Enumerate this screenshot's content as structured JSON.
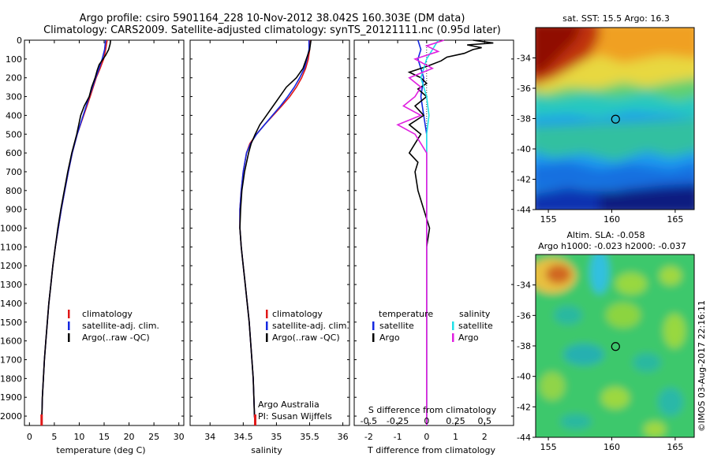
{
  "title": {
    "line1": "Argo profile: csiro 5901164_228 10-Nov-2012 38.042S 160.303E (DM data)",
    "line2": "Climatology: CARS2009. Satellite-adjusted climatology: synTS_20121111.nc (0.95d later)"
  },
  "colors": {
    "climatology": "#e01818",
    "satellite": "#1428e0",
    "argo": "#000000",
    "satellite_salinity": "#20e0e8",
    "argo_salinity": "#e020e0",
    "marker": "#e01818"
  },
  "y_axis": {
    "ticks": [
      "0",
      "100",
      "200",
      "300",
      "400",
      "500",
      "600",
      "700",
      "800",
      "900",
      "1000",
      "1100",
      "1200",
      "1300",
      "1400",
      "1500",
      "1600",
      "1700",
      "1800",
      "1900",
      "2000"
    ],
    "ylim": [
      0,
      2050
    ],
    "inverted": true
  },
  "chart_data": [
    {
      "type": "line",
      "name": "temperature",
      "xlabel": "temperature (deg C)",
      "xlim": [
        -1,
        31
      ],
      "xticks": [
        "0",
        "5",
        "10",
        "15",
        "20",
        "25",
        "30"
      ],
      "legend": [
        "climatology",
        "satellite-adj. clim.",
        "Argo(..raw -QC)"
      ],
      "legend_position": "lower-right",
      "series": [
        {
          "name": "climatology",
          "key": "climatology",
          "depth": [
            0,
            50,
            100,
            150,
            200,
            300,
            400,
            500,
            600,
            700,
            800,
            900,
            1000,
            1100,
            1200,
            1300,
            1400,
            1500,
            1600,
            1700,
            1800,
            1900,
            2000,
            2050
          ],
          "values": [
            15.6,
            15.3,
            14.9,
            14.2,
            13.4,
            12.2,
            10.9,
            9.6,
            8.6,
            7.8,
            7.1,
            6.4,
            5.8,
            5.2,
            4.7,
            4.3,
            3.9,
            3.6,
            3.3,
            3.0,
            2.8,
            2.6,
            2.5,
            2.45
          ]
        },
        {
          "name": "satellite-adj. clim.",
          "key": "satellite",
          "depth": [
            0,
            50,
            100,
            150,
            200,
            300,
            400,
            500,
            600,
            700,
            800,
            900,
            1000,
            1100,
            1200,
            1300,
            1400,
            1500,
            1600,
            1700,
            1800,
            1900,
            2000,
            2050
          ],
          "values": [
            15.3,
            15.1,
            14.6,
            14.0,
            13.3,
            12.0,
            10.8,
            9.6,
            8.6,
            7.8,
            7.1,
            6.4,
            5.8,
            5.2,
            4.7,
            4.3,
            3.9,
            3.6,
            3.3,
            3.0,
            2.8,
            2.6,
            2.5,
            2.45
          ]
        },
        {
          "name": "Argo(..raw -QC)",
          "key": "argo",
          "depth": [
            0,
            20,
            50,
            80,
            100,
            130,
            160,
            200,
            250,
            300,
            350,
            400,
            500,
            600,
            700,
            800,
            900,
            1000,
            1100,
            1200,
            1300,
            1400,
            1500,
            1600,
            1700,
            1800,
            1900,
            2000,
            2050
          ],
          "values": [
            16.3,
            16.2,
            15.9,
            15.3,
            14.8,
            14.0,
            13.6,
            13.2,
            12.5,
            12.0,
            11.0,
            10.3,
            9.5,
            8.5,
            7.7,
            7.0,
            6.3,
            5.7,
            5.2,
            4.7,
            4.3,
            3.9,
            3.6,
            3.3,
            3.0,
            2.8,
            2.6,
            2.5,
            2.45
          ]
        }
      ]
    },
    {
      "type": "line",
      "name": "salinity",
      "xlabel": "salinity",
      "xlim": [
        33.7,
        36.1
      ],
      "xticks": [
        "34",
        "34.5",
        "35",
        "35.5",
        "36"
      ],
      "legend": [
        "climatology",
        "satellite-adj. clim.",
        "Argo(..raw -QC)"
      ],
      "legend_position": "lower-right",
      "annotation": [
        "Argo Australia",
        "PI: Susan Wijffels"
      ],
      "series": [
        {
          "name": "climatology",
          "key": "climatology",
          "depth": [
            0,
            50,
            100,
            150,
            200,
            250,
            300,
            350,
            400,
            450,
            500,
            550,
            600,
            700,
            800,
            900,
            1000,
            1100,
            1200,
            1300,
            1400,
            1500,
            1600,
            1700,
            1800,
            1900,
            2000,
            2050
          ],
          "values": [
            35.5,
            35.5,
            35.48,
            35.44,
            35.38,
            35.3,
            35.2,
            35.08,
            34.95,
            34.82,
            34.7,
            34.6,
            34.55,
            34.5,
            34.47,
            34.45,
            34.45,
            34.47,
            34.5,
            34.53,
            34.56,
            34.59,
            34.61,
            34.63,
            34.65,
            34.66,
            34.67,
            34.68
          ]
        },
        {
          "name": "satellite-adj. clim.",
          "key": "satellite",
          "depth": [
            0,
            50,
            100,
            150,
            200,
            250,
            300,
            350,
            400,
            450,
            500,
            550,
            600,
            700,
            800,
            900,
            1000,
            1100,
            1200,
            1300,
            1400,
            1500,
            1600,
            1700,
            1800,
            1900,
            2000,
            2050
          ],
          "values": [
            35.49,
            35.49,
            35.46,
            35.42,
            35.35,
            35.27,
            35.17,
            35.06,
            34.94,
            34.82,
            34.7,
            34.61,
            34.55,
            34.5,
            34.47,
            34.45,
            34.45,
            34.47,
            34.5,
            34.53,
            34.56,
            34.59,
            34.61,
            34.63,
            34.65,
            34.66,
            34.67,
            34.68
          ]
        },
        {
          "name": "Argo(..raw -QC)",
          "key": "argo",
          "depth": [
            0,
            50,
            100,
            150,
            200,
            250,
            300,
            350,
            400,
            450,
            500,
            550,
            600,
            700,
            800,
            900,
            1000,
            1100,
            1200,
            1300,
            1400,
            1500,
            1600,
            1700,
            1800,
            1900,
            2000,
            2050
          ],
          "values": [
            35.52,
            35.5,
            35.45,
            35.4,
            35.3,
            35.15,
            35.05,
            34.95,
            34.85,
            34.75,
            34.68,
            34.62,
            34.58,
            34.52,
            34.48,
            34.46,
            34.45,
            34.47,
            34.5,
            34.53,
            34.56,
            34.59,
            34.61,
            34.63,
            34.65,
            34.66,
            34.67,
            34.68
          ]
        }
      ]
    },
    {
      "type": "line",
      "name": "differences",
      "xlabel": "T difference from climatology",
      "xlabel2": "S difference from climatology",
      "xlim": [
        -2.5,
        3
      ],
      "xticks": [
        "-2",
        "-1",
        "0",
        "1",
        "2"
      ],
      "xticks2": [
        "-0.5",
        "-0.25",
        "0",
        "0.25",
        "0.5"
      ],
      "legend_temperature": {
        "heading": "temperature",
        "entries": [
          "satellite",
          "Argo"
        ]
      },
      "legend_salinity": {
        "heading": "salinity",
        "entries": [
          "satellite",
          "Argo"
        ]
      },
      "series": [
        {
          "name": "satellite T",
          "key": "satellite",
          "depth": [
            0,
            50,
            100,
            200,
            300,
            400,
            500,
            600,
            800,
            1000,
            1500,
            2000,
            2050
          ],
          "values": [
            -0.3,
            -0.2,
            -0.3,
            -0.1,
            -0.2,
            -0.1,
            0.0,
            0.0,
            0.0,
            0.0,
            0.0,
            0.0,
            0.0
          ]
        },
        {
          "name": "Argo T",
          "key": "argo",
          "depth": [
            0,
            15,
            25,
            40,
            50,
            70,
            90,
            110,
            140,
            170,
            200,
            230,
            260,
            300,
            350,
            400,
            450,
            500,
            550,
            600,
            650,
            700,
            800,
            900,
            1000,
            1100,
            1200,
            1500,
            1800,
            2000,
            2050
          ],
          "values": [
            1.6,
            2.3,
            1.4,
            1.9,
            1.6,
            1.3,
            0.7,
            0.5,
            0.0,
            -0.6,
            -0.2,
            0.0,
            -0.3,
            0.0,
            -0.4,
            -0.1,
            -0.6,
            -0.2,
            -0.4,
            -0.6,
            -0.3,
            -0.4,
            -0.3,
            -0.1,
            0.1,
            0.0,
            0.0,
            0.0,
            0.0,
            0.0,
            0.0
          ]
        },
        {
          "name": "satellite S",
          "key": "satellite_salinity",
          "depth": [
            0,
            50,
            100,
            200,
            300,
            400,
            500,
            600,
            800,
            1000,
            1500,
            2000,
            2050
          ],
          "values": [
            0.1,
            0.05,
            0.0,
            -0.05,
            0.0,
            0.02,
            0.0,
            0.0,
            0.0,
            0.0,
            0.0,
            0.0,
            0.0
          ]
        },
        {
          "name": "Argo S",
          "key": "argo_salinity",
          "depth": [
            0,
            30,
            60,
            100,
            150,
            200,
            250,
            300,
            350,
            400,
            450,
            500,
            550,
            600,
            700,
            800,
            1000,
            2000,
            2050
          ],
          "values": [
            0.15,
            0.0,
            0.1,
            -0.1,
            0.05,
            -0.15,
            -0.05,
            -0.1,
            -0.2,
            -0.05,
            -0.25,
            -0.1,
            -0.05,
            0.0,
            0.0,
            0.0,
            0.0,
            0.0,
            0.0
          ]
        }
      ]
    },
    {
      "type": "heatmap",
      "name": "sst-map",
      "title": "sat. SST: 15.5 Argo: 16.3",
      "xticks": [
        "155",
        "160",
        "165"
      ],
      "yticks": [
        "-34",
        "-36",
        "-38",
        "-40",
        "-42",
        "-44"
      ],
      "xlim": [
        154,
        166.5
      ],
      "ylim": [
        -44,
        -32
      ],
      "marker": [
        160.3,
        -38.04
      ]
    },
    {
      "type": "heatmap",
      "name": "sla-map",
      "title_line1": "Altim. SLA: -0.058",
      "title_line2": "Argo h1000: -0.023 h2000: -0.037",
      "xticks": [
        "155",
        "160",
        "165"
      ],
      "yticks": [
        "-34",
        "-36",
        "-38",
        "-40",
        "-42",
        "-44"
      ],
      "xlim": [
        154,
        166.5
      ],
      "ylim": [
        -44,
        -32
      ],
      "marker": [
        160.3,
        -38.04
      ]
    }
  ],
  "side_label": "©IMOS 03-Aug-2017 22:16:11"
}
